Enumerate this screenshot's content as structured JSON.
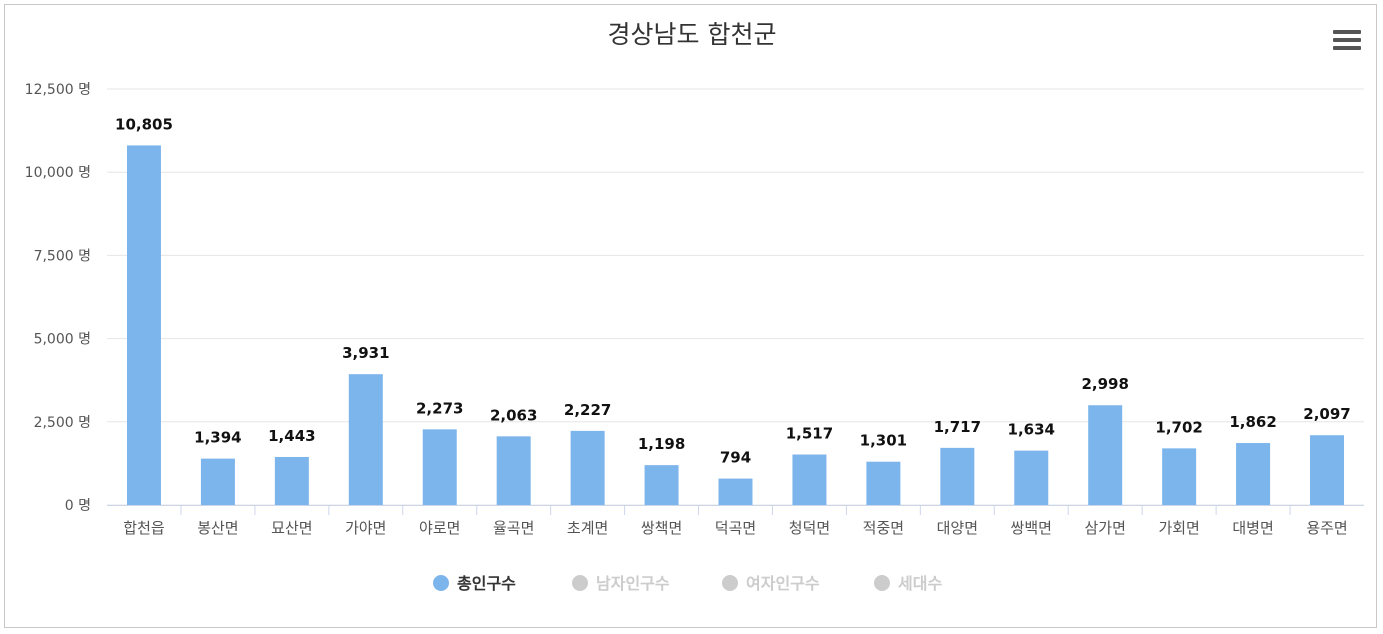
{
  "chart_data": {
    "type": "bar",
    "title": "경상남도 합천군",
    "categories": [
      "합천읍",
      "봉산면",
      "묘산면",
      "가야면",
      "야로면",
      "율곡면",
      "초계면",
      "쌍책면",
      "덕곡면",
      "청덕면",
      "적중면",
      "대양면",
      "쌍백면",
      "삼가면",
      "가회면",
      "대병면",
      "용주면"
    ],
    "series": [
      {
        "name": "총인구수",
        "values": [
          10805,
          1394,
          1443,
          3931,
          2273,
          2063,
          2227,
          1198,
          794,
          1517,
          1301,
          1717,
          1634,
          2998,
          1702,
          1862,
          2097
        ],
        "visible": true
      }
    ],
    "data_labels": [
      "10,805",
      "1,394",
      "1,443",
      "3,931",
      "2,273",
      "2,063",
      "2,227",
      "1,198",
      "794",
      "1,517",
      "1,301",
      "1,717",
      "1,634",
      "2,998",
      "1,702",
      "1,862",
      "2,097"
    ],
    "ylim": [
      0,
      12500
    ],
    "yticks": [
      0,
      2500,
      5000,
      7500,
      10000,
      12500
    ],
    "ytick_labels": [
      "0 명",
      "2,500 명",
      "5,000 명",
      "7,500 명",
      "10,000 명",
      "12,500 명"
    ],
    "xlabel": "",
    "ylabel": "",
    "grid": true,
    "legend_position": "bottom-center",
    "legend": [
      {
        "name": "총인구수",
        "active": true
      },
      {
        "name": "남자인구수",
        "active": false
      },
      {
        "name": "여자인구수",
        "active": false
      },
      {
        "name": "세대수",
        "active": false
      }
    ],
    "colors": {
      "bar": "#7cb5ec",
      "legend_inactive": "#cccccc",
      "legend_active_text": "#333333",
      "gridline": "#e6e6e6"
    }
  },
  "menu_icon": "hamburger-menu-icon"
}
